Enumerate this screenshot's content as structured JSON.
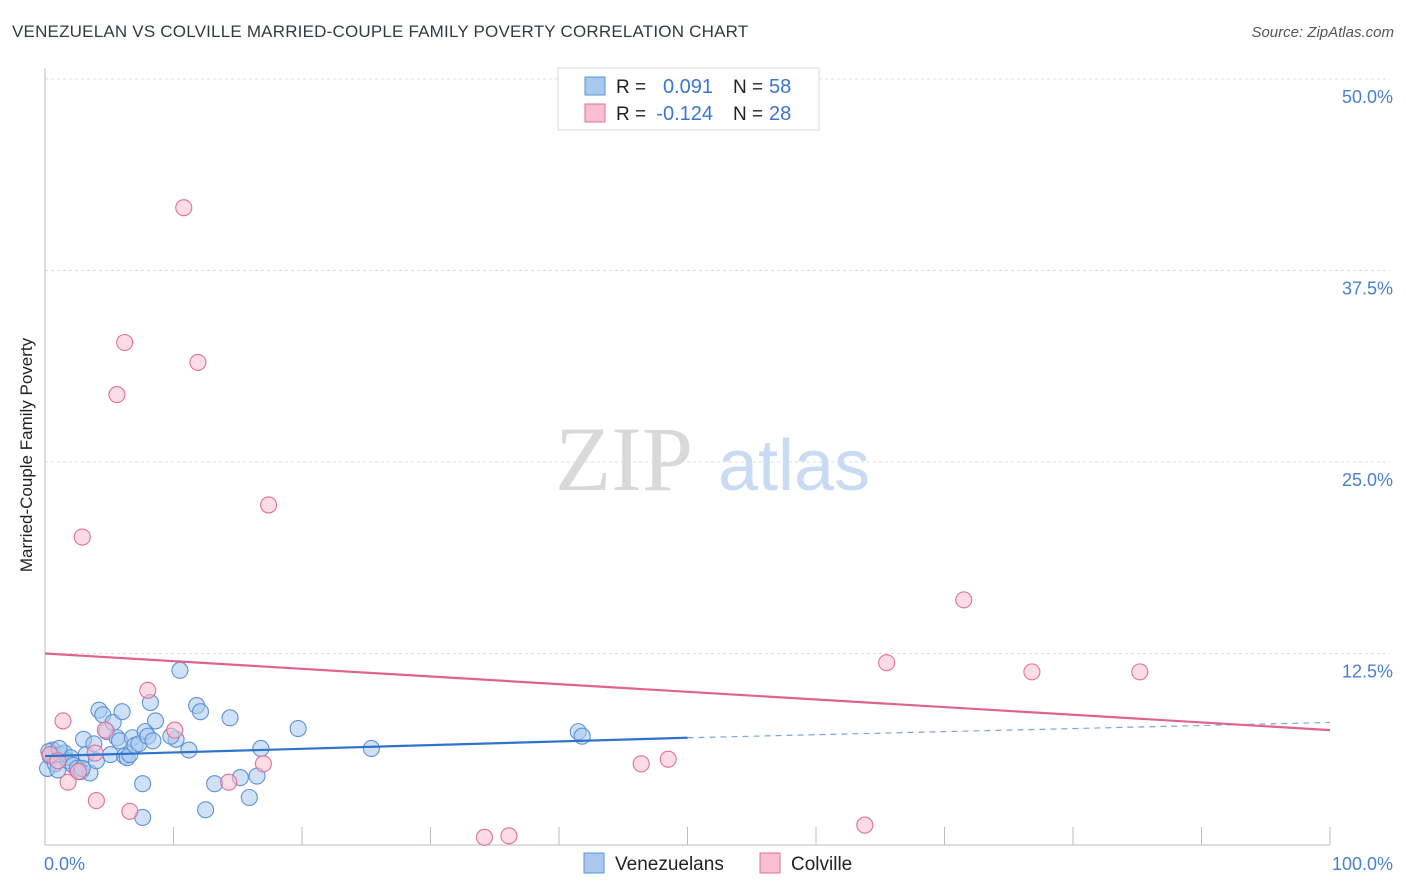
{
  "chart_data": {
    "type": "scatter",
    "title": "VENEZUELAN VS COLVILLE MARRIED-COUPLE FAMILY POVERTY CORRELATION CHART",
    "source": "Source: ZipAtlas.com",
    "xlabel": "",
    "ylabel": "Married-Couple Family Poverty",
    "xlim": [
      0,
      100
    ],
    "ylim": [
      0,
      50
    ],
    "x_tick_labels": [
      "0.0%",
      "100.0%"
    ],
    "y_tick_labels": [
      "12.5%",
      "25.0%",
      "37.5%",
      "50.0%"
    ],
    "y_ticks": [
      12.5,
      25.0,
      37.5,
      50.0
    ],
    "grid": true,
    "watermark": "ZIPatlas",
    "legend": {
      "entries": [
        {
          "r_label": "R =",
          "r_value": "0.091",
          "n_label": "N =",
          "n_value": "58"
        },
        {
          "r_label": "R =",
          "r_value": "-0.124",
          "n_label": "N =",
          "n_value": "28"
        }
      ],
      "bottom": [
        "Venezuelans",
        "Colville"
      ]
    },
    "series": [
      {
        "name": "Venezuelans",
        "color": "#5b93d6",
        "fill": "#a9c8ee",
        "trend": {
          "x0": 0,
          "y0": 5.8,
          "x1": 50,
          "y1": 7.0,
          "dashed_to": 100,
          "dashed_y": 8.0
        },
        "points": [
          [
            0.2,
            5.0
          ],
          [
            0.4,
            5.8
          ],
          [
            0.6,
            6.2
          ],
          [
            0.8,
            5.3
          ],
          [
            1.0,
            4.9
          ],
          [
            1.2,
            5.9
          ],
          [
            1.5,
            6.0
          ],
          [
            1.8,
            5.5
          ],
          [
            2.0,
            5.7
          ],
          [
            2.2,
            5.2
          ],
          [
            2.5,
            5.0
          ],
          [
            2.8,
            4.8
          ],
          [
            3.0,
            6.9
          ],
          [
            3.2,
            5.9
          ],
          [
            3.5,
            4.7
          ],
          [
            3.8,
            6.6
          ],
          [
            4.0,
            5.5
          ],
          [
            4.2,
            8.8
          ],
          [
            4.5,
            8.5
          ],
          [
            4.8,
            7.4
          ],
          [
            5.1,
            5.9
          ],
          [
            5.3,
            8.0
          ],
          [
            5.6,
            7.0
          ],
          [
            5.8,
            6.8
          ],
          [
            6.0,
            8.7
          ],
          [
            6.2,
            5.8
          ],
          [
            6.4,
            5.7
          ],
          [
            6.6,
            5.9
          ],
          [
            6.8,
            7.0
          ],
          [
            7.0,
            6.5
          ],
          [
            7.3,
            6.6
          ],
          [
            7.6,
            4.0
          ],
          [
            7.8,
            7.4
          ],
          [
            8.0,
            7.1
          ],
          [
            8.2,
            9.3
          ],
          [
            8.4,
            6.8
          ],
          [
            8.6,
            8.1
          ],
          [
            10.2,
            6.9
          ],
          [
            10.5,
            11.4
          ],
          [
            11.2,
            6.2
          ],
          [
            11.8,
            9.1
          ],
          [
            12.1,
            8.7
          ],
          [
            12.5,
            2.3
          ],
          [
            13.2,
            4.0
          ],
          [
            14.4,
            8.3
          ],
          [
            15.2,
            4.4
          ],
          [
            15.9,
            3.1
          ],
          [
            16.5,
            4.5
          ],
          [
            16.8,
            6.3
          ],
          [
            19.7,
            7.6
          ],
          [
            25.4,
            6.3
          ],
          [
            41.5,
            7.4
          ],
          [
            41.8,
            7.1
          ],
          [
            0.3,
            6.1
          ],
          [
            1.1,
            6.3
          ],
          [
            7.6,
            1.8
          ],
          [
            2.9,
            5.0
          ],
          [
            9.8,
            7.1
          ]
        ]
      },
      {
        "name": "Colville",
        "color": "#e16f96",
        "fill": "#f7bfd0",
        "trend": {
          "x0": 0,
          "y0": 12.5,
          "x1": 100,
          "y1": 7.5
        },
        "points": [
          [
            0.4,
            5.9
          ],
          [
            1.4,
            8.1
          ],
          [
            1.8,
            4.1
          ],
          [
            2.6,
            4.8
          ],
          [
            2.9,
            20.1
          ],
          [
            3.9,
            6.0
          ],
          [
            4.0,
            2.9
          ],
          [
            4.7,
            7.5
          ],
          [
            5.6,
            29.4
          ],
          [
            6.2,
            32.8
          ],
          [
            6.6,
            2.2
          ],
          [
            8.0,
            10.1
          ],
          [
            10.1,
            7.5
          ],
          [
            10.8,
            41.6
          ],
          [
            11.9,
            31.5
          ],
          [
            14.3,
            4.1
          ],
          [
            17.0,
            5.3
          ],
          [
            17.4,
            22.2
          ],
          [
            34.2,
            0.5
          ],
          [
            36.1,
            0.6
          ],
          [
            46.4,
            5.3
          ],
          [
            48.5,
            5.6
          ],
          [
            63.8,
            1.3
          ],
          [
            65.5,
            11.9
          ],
          [
            71.5,
            16.0
          ],
          [
            76.8,
            11.3
          ],
          [
            85.2,
            11.3
          ],
          [
            1.0,
            5.5
          ]
        ]
      }
    ]
  }
}
